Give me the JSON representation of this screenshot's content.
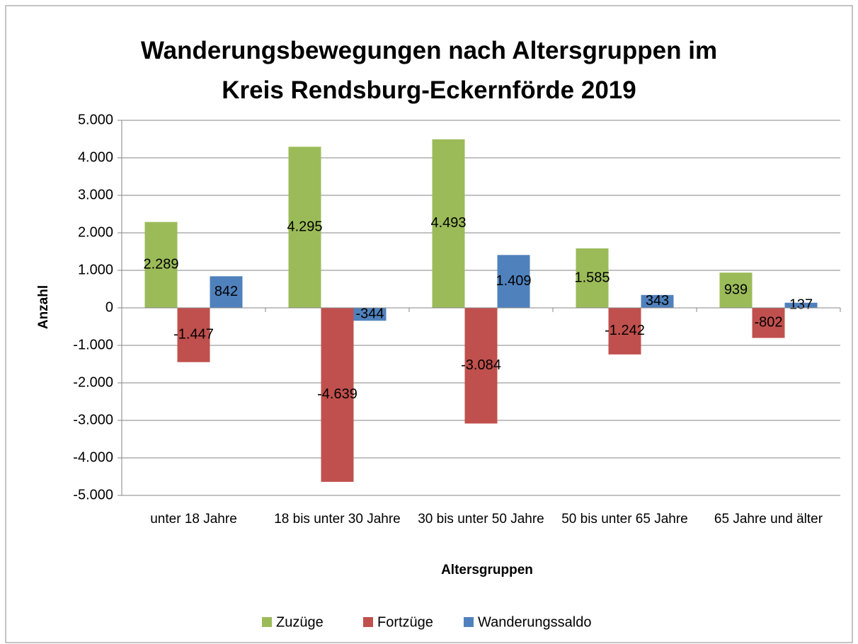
{
  "chart_data": {
    "type": "bar",
    "title": "Wanderungsbewegungen nach Altersgruppen im Kreis Rendsburg-Eckernförde 2019",
    "x_label": "Altersgruppen",
    "y_label": "Anzahl",
    "categories": [
      "unter 18 Jahre",
      "18 bis unter 30 Jahre",
      "30 bis unter 50 Jahre",
      "50 bis unter 65 Jahre",
      "65 Jahre und älter"
    ],
    "series": [
      {
        "name": "Zuzüge",
        "color": "#9bbb59",
        "values": [
          2289,
          4295,
          4493,
          1585,
          939
        ],
        "value_labels": [
          "2.289",
          "4.295",
          "4.493",
          "1.585",
          "939"
        ]
      },
      {
        "name": "Fortzüge",
        "color": "#c0504d",
        "values": [
          -1447,
          -4639,
          -3084,
          -1242,
          -802
        ],
        "value_labels": [
          "-1.447",
          "-4.639",
          "-3.084",
          "-1.242",
          "-802"
        ]
      },
      {
        "name": "Wanderungssaldo",
        "color": "#4f81bd",
        "values": [
          842,
          -344,
          1409,
          343,
          137
        ],
        "value_labels": [
          "842",
          "-344",
          "1.409",
          "343",
          "137"
        ]
      }
    ],
    "ylim": [
      -5000,
      5000
    ],
    "yticks": [
      {
        "value": -5000,
        "label": "-5.000"
      },
      {
        "value": -4000,
        "label": "-4.000"
      },
      {
        "value": -3000,
        "label": "-3.000"
      },
      {
        "value": -2000,
        "label": "-2.000"
      },
      {
        "value": -1000,
        "label": "-1.000"
      },
      0,
      {
        "value": 1000,
        "label": "1.000"
      },
      {
        "value": 2000,
        "label": "2.000"
      },
      {
        "value": 3000,
        "label": "3.000"
      },
      {
        "value": 4000,
        "label": "4.000"
      },
      {
        "value": 5000,
        "label": "5.000"
      }
    ],
    "grid": true,
    "legend": "bottom"
  }
}
